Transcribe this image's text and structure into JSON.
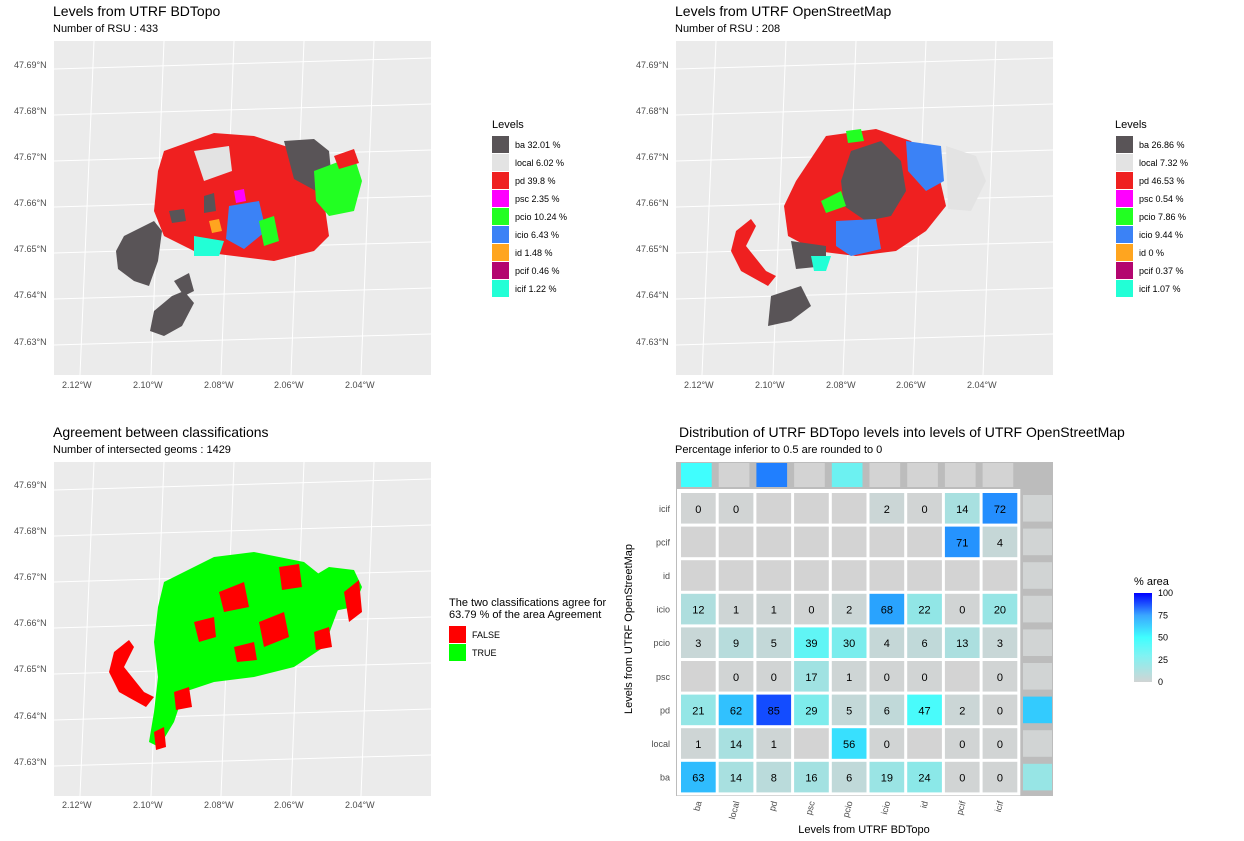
{
  "maps": [
    {
      "title": "Levels from   UTRF BDTopo",
      "subtitle": "Number of RSU : 433",
      "legend_title": "Levels",
      "legend": [
        {
          "label": "ba 32.01  %",
          "color": "#595457"
        },
        {
          "label": "local 6.02  %",
          "color": "#e3e3e3"
        },
        {
          "label": "pd 39.8  %",
          "color": "#ef2020"
        },
        {
          "label": "psc 2.35  %",
          "color": "#ff00ff"
        },
        {
          "label": "pcio 10.24  %",
          "color": "#22ff22"
        },
        {
          "label": "icio 6.43  %",
          "color": "#3b82f6"
        },
        {
          "label": "id 1.48  %",
          "color": "#ffa51f"
        },
        {
          "label": "pcif 0.46  %",
          "color": "#b3056f"
        },
        {
          "label": "icif 1.22  %",
          "color": "#22ffd6"
        }
      ]
    },
    {
      "title": "Levels from  UTRF OpenStreetMap",
      "subtitle": "Number of RSU : 208",
      "legend_title": "Levels",
      "legend": [
        {
          "label": "ba 26.86  %",
          "color": "#595457"
        },
        {
          "label": "local 7.32  %",
          "color": "#e3e3e3"
        },
        {
          "label": "pd 46.53  %",
          "color": "#ef2020"
        },
        {
          "label": "psc 0.54  %",
          "color": "#ff00ff"
        },
        {
          "label": "pcio 7.86  %",
          "color": "#22ff22"
        },
        {
          "label": "icio 9.44  %",
          "color": "#3b82f6"
        },
        {
          "label": "id 0  %",
          "color": "#ffa51f"
        },
        {
          "label": "pcif 0.37  %",
          "color": "#b3056f"
        },
        {
          "label": "icif 1.07  %",
          "color": "#22ffd6"
        }
      ]
    },
    {
      "title": "Agreement between classifications",
      "subtitle": "Number of intersected geoms : 1429",
      "legend_title_line1": "The two classifications agree for",
      "legend_title_line2": " 63.79 % of the area Agreement",
      "legend": [
        {
          "label": "FALSE",
          "color": "#ff0000"
        },
        {
          "label": "TRUE",
          "color": "#00ff00"
        }
      ]
    }
  ],
  "map_axes": {
    "lat_ticks": [
      "47.69°N",
      "47.68°N",
      "47.67°N",
      "47.66°N",
      "47.65°N",
      "47.64°N",
      "47.63°N"
    ],
    "lon_ticks": [
      "2.12°W",
      "2.10°W",
      "2.08°W",
      "2.06°W",
      "2.04°W"
    ]
  },
  "chart_data": {
    "type": "heatmap",
    "title": "Distribution of  UTRF BDTopo  levels into levels of  UTRF OpenStreetMap",
    "subtitle": "Percentage inferior to 0.5 are rounded to 0",
    "xlabel": "Levels from   UTRF BDTopo",
    "ylabel": "Levels from  UTRF OpenStreetMap",
    "x": [
      "ba",
      "local",
      "pd",
      "psc",
      "pcio",
      "icio",
      "id",
      "pcif",
      "icif"
    ],
    "y": [
      "icif",
      "pcif",
      "id",
      "icio",
      "pcio",
      "psc",
      "pd",
      "local",
      "ba"
    ],
    "values": [
      [
        0,
        0,
        null,
        null,
        null,
        2,
        0,
        14,
        72
      ],
      [
        null,
        null,
        null,
        null,
        null,
        null,
        null,
        71,
        4
      ],
      [
        null,
        null,
        null,
        null,
        null,
        null,
        null,
        null,
        null
      ],
      [
        12,
        1,
        1,
        0,
        2,
        68,
        22,
        0,
        20
      ],
      [
        3,
        9,
        5,
        39,
        30,
        4,
        6,
        13,
        3
      ],
      [
        null,
        0,
        0,
        17,
        1,
        0,
        0,
        null,
        0
      ],
      [
        21,
        62,
        85,
        29,
        5,
        6,
        47,
        2,
        0
      ],
      [
        1,
        14,
        1,
        null,
        56,
        0,
        null,
        0,
        0
      ],
      [
        63,
        14,
        8,
        16,
        6,
        19,
        24,
        0,
        0
      ]
    ],
    "top_marginal": [
      25,
      0,
      50,
      0,
      10,
      0,
      0,
      0,
      0
    ],
    "right_marginal": [
      0,
      0,
      0,
      0,
      0,
      0,
      60,
      0,
      20
    ],
    "colorbar": {
      "title": "% area",
      "ticks": [
        100,
        75,
        50,
        25,
        0
      ],
      "range": [
        0,
        100
      ]
    },
    "colors": {
      "low": "#d1d4d4",
      "mid": "#40fefe",
      "high": "#0000ff",
      "empty": "#d3d3d3"
    }
  }
}
